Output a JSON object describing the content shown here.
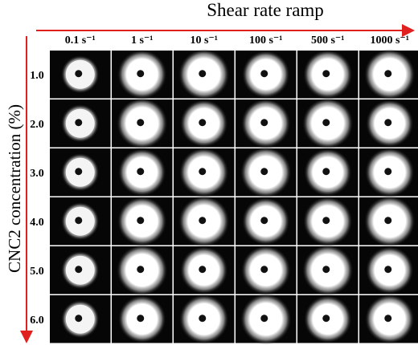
{
  "header": {
    "title": "Shear rate ramp"
  },
  "axis_label": "CNC2 concentration (%)",
  "columns": [
    "0.1 s⁻¹",
    "1 s⁻¹",
    "10 s⁻¹",
    "100 s⁻¹",
    "500 s⁻¹",
    "1000 s⁻¹"
  ],
  "rows": [
    "1.0",
    "2.0",
    "3.0",
    "4.0",
    "5.0",
    "6.0"
  ]
}
